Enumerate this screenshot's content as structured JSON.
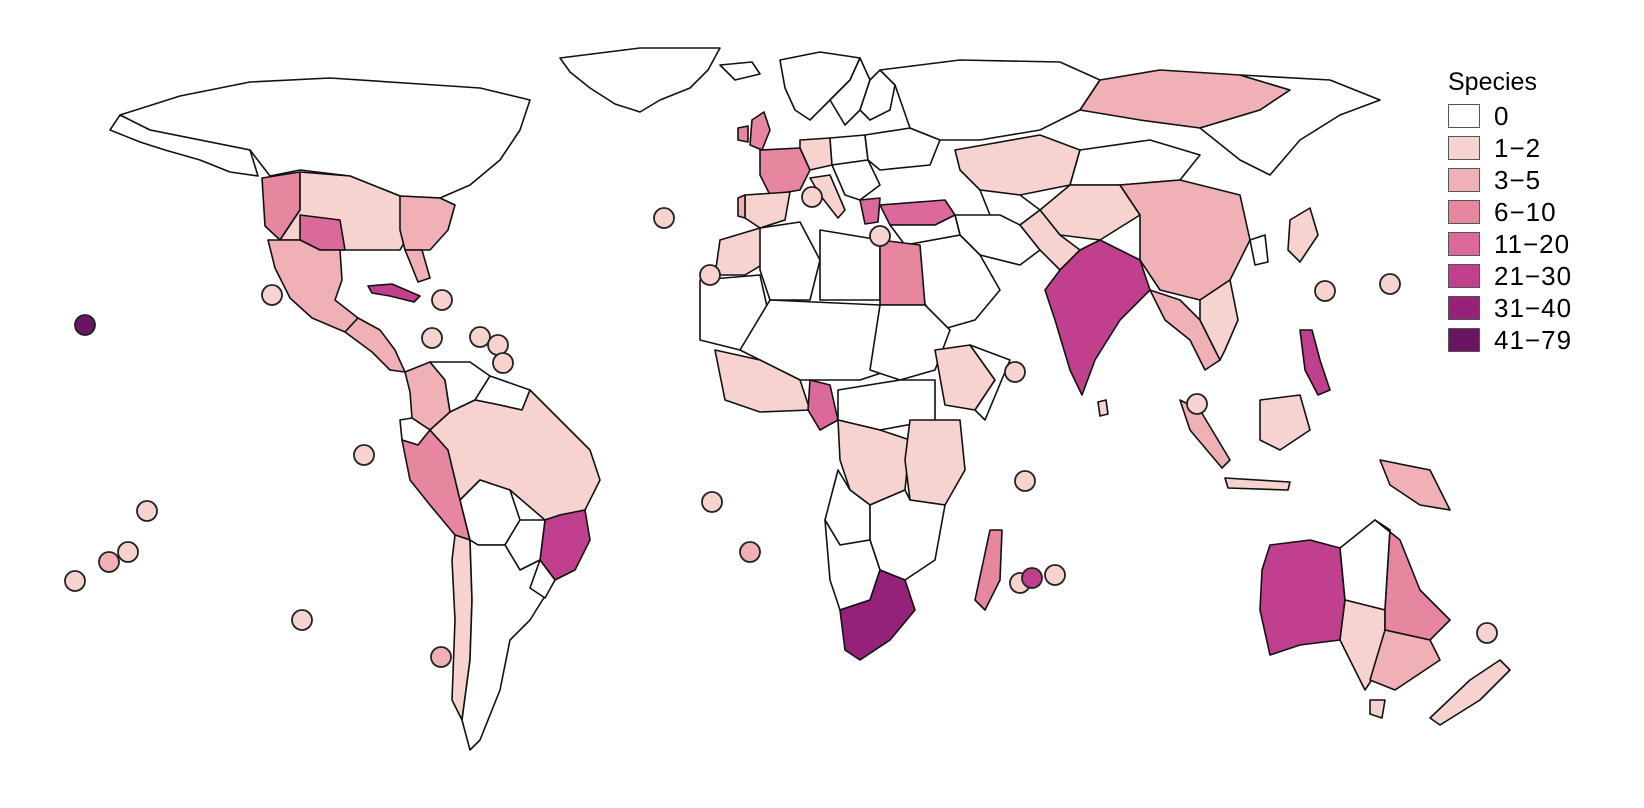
{
  "map": {
    "legend": {
      "title": "Species",
      "bins": [
        {
          "label": "0",
          "color": "#ffffff"
        },
        {
          "label": "1−2",
          "color": "#f7d3d0"
        },
        {
          "label": "3−5",
          "color": "#f0b1b6"
        },
        {
          "label": "6−10",
          "color": "#e6879f"
        },
        {
          "label": "11−20",
          "color": "#db6a9b"
        },
        {
          "label": "21−30",
          "color": "#c1408e"
        },
        {
          "label": "31−40",
          "color": "#952278"
        },
        {
          "label": "41−79",
          "color": "#6a1464"
        }
      ]
    }
  }
}
